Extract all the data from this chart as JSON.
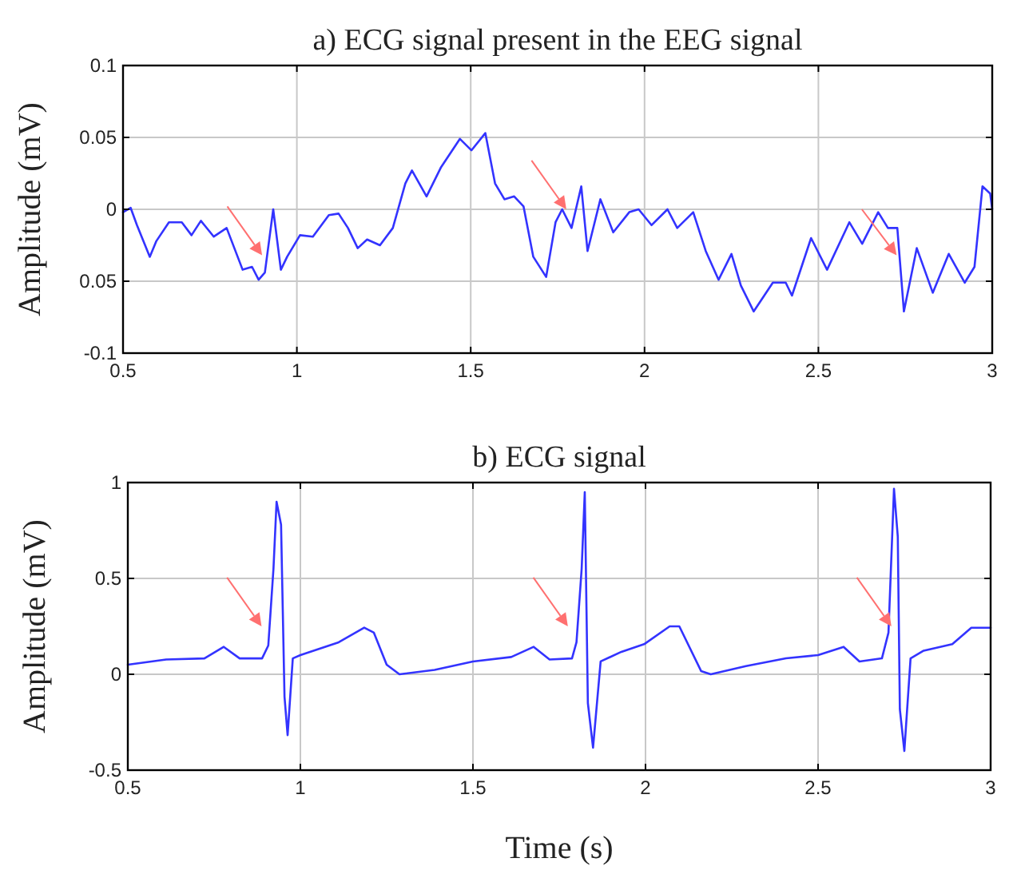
{
  "chart_data": [
    {
      "type": "line",
      "title": "a)  ECG signal present in the EEG signal",
      "ylabel": "Amplitude (mV)",
      "xlim": [
        0.5,
        3
      ],
      "xticks": [
        0.5,
        1,
        1.5,
        2,
        2.5,
        3
      ],
      "ylim": [
        -0.1,
        0.1
      ],
      "yticks": [
        -0.1,
        {
          "value": -0.05,
          "label": "0.05"
        },
        0,
        0.05,
        0.1
      ],
      "grid": true,
      "line_style": "solid",
      "x": [
        0.5,
        0.522,
        0.54,
        0.577,
        0.596,
        0.632,
        0.669,
        0.697,
        0.724,
        0.761,
        0.798,
        0.844,
        0.871,
        0.89,
        0.908,
        0.932,
        0.954,
        0.972,
        1.009,
        1.046,
        1.092,
        1.12,
        1.147,
        1.175,
        1.202,
        1.239,
        1.276,
        1.312,
        1.331,
        1.373,
        1.414,
        1.469,
        1.502,
        1.542,
        1.57,
        1.597,
        1.625,
        1.652,
        1.68,
        1.717,
        1.744,
        1.763,
        1.79,
        1.818,
        1.836,
        1.873,
        1.91,
        1.956,
        1.983,
        2.02,
        2.066,
        2.094,
        2.14,
        2.176,
        2.213,
        2.25,
        2.277,
        2.314,
        2.369,
        2.406,
        2.424,
        2.479,
        2.525,
        2.589,
        2.626,
        2.672,
        2.7,
        2.727,
        2.746,
        2.783,
        2.829,
        2.875,
        2.921,
        2.949,
        2.972,
        2.994,
        3
      ],
      "series": [
        {
          "color": "#3333ff",
          "values": [
            -0.002,
            0.001,
            -0.011,
            -0.033,
            -0.022,
            -0.009,
            -0.009,
            -0.018,
            -0.008,
            -0.019,
            -0.013,
            -0.042,
            -0.04,
            -0.049,
            -0.044,
            0,
            -0.042,
            -0.033,
            -0.018,
            -0.019,
            -0.004,
            -0.003,
            -0.013,
            -0.027,
            -0.021,
            -0.025,
            -0.013,
            0.018,
            0.027,
            0.009,
            0.029,
            0.049,
            0.041,
            0.053,
            0.018,
            0.007,
            0.009,
            0.002,
            -0.033,
            -0.047,
            -0.009,
            0,
            -0.013,
            0.016,
            -0.029,
            0.007,
            -0.016,
            -0.002,
            0,
            -0.011,
            0,
            -0.013,
            -0.002,
            -0.029,
            -0.049,
            -0.031,
            -0.053,
            -0.071,
            -0.051,
            -0.051,
            -0.06,
            -0.02,
            -0.042,
            -0.009,
            -0.024,
            -0.002,
            -0.013,
            -0.013,
            -0.071,
            -0.027,
            -0.058,
            -0.031,
            -0.051,
            -0.04,
            0.016,
            0.011,
            0
          ]
        }
      ]
    },
    {
      "type": "line",
      "title": "b) ECG signal",
      "xlabel": "Time (s)",
      "ylabel": "Amplitude (mV)",
      "xlim": [
        0.5,
        3
      ],
      "xticks": [
        0.5,
        1,
        1.5,
        2,
        2.5,
        3
      ],
      "ylim": [
        -0.5,
        1
      ],
      "yticks": [
        -0.5,
        0,
        0.5,
        1
      ],
      "grid": true,
      "line_style": "solid",
      "x": [
        0.5,
        0.611,
        0.722,
        0.778,
        0.824,
        0.889,
        0.907,
        0.922,
        0.931,
        0.944,
        0.954,
        0.963,
        0.978,
        1.0,
        1.111,
        1.185,
        1.213,
        1.25,
        1.287,
        1.389,
        1.5,
        1.611,
        1.676,
        1.722,
        1.787,
        1.8,
        1.815,
        1.824,
        1.833,
        1.848,
        1.87,
        1.93,
        1.996,
        2.07,
        2.098,
        2.161,
        2.189,
        2.291,
        2.407,
        2.5,
        2.574,
        2.62,
        2.685,
        2.704,
        2.72,
        2.731,
        2.737,
        2.75,
        2.768,
        2.806,
        2.889,
        2.944,
        3
      ],
      "series": [
        {
          "color": "#3333ff",
          "values": [
            0.05,
            0.077,
            0.083,
            0.143,
            0.083,
            0.083,
            0.15,
            0.55,
            0.9,
            0.78,
            -0.117,
            -0.317,
            0.083,
            0.1,
            0.167,
            0.243,
            0.217,
            0.05,
            0,
            0.023,
            0.067,
            0.09,
            0.143,
            0.077,
            0.083,
            0.167,
            0.55,
            0.95,
            -0.15,
            -0.383,
            0.067,
            0.117,
            0.157,
            0.25,
            0.25,
            0.017,
            0,
            0.043,
            0.083,
            0.1,
            0.143,
            0.067,
            0.083,
            0.217,
            0.967,
            0.717,
            -0.183,
            -0.4,
            0.083,
            0.123,
            0.157,
            0.243,
            0.243
          ]
        }
      ]
    }
  ]
}
